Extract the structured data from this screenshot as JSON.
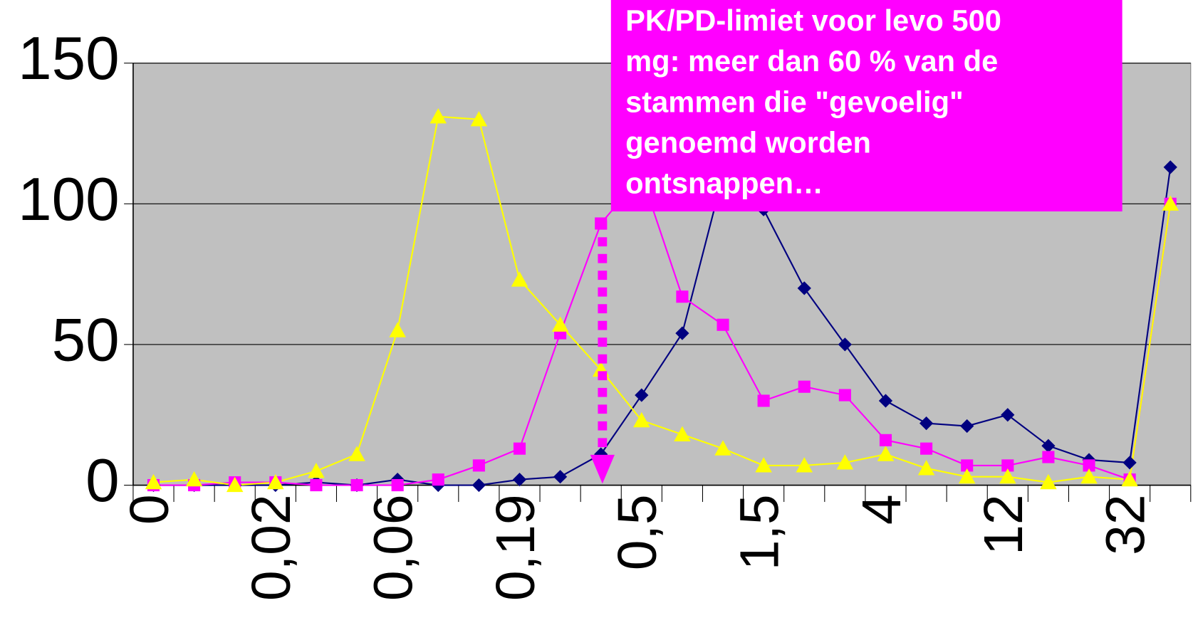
{
  "chart_data": {
    "type": "line",
    "categories": [
      "0",
      null,
      null,
      "0,02",
      null,
      null,
      "0,06",
      null,
      null,
      "0,19",
      null,
      null,
      "0,5",
      null,
      null,
      "1,5",
      null,
      null,
      "4",
      null,
      null,
      "12",
      null,
      null,
      "32",
      null
    ],
    "series": [
      {
        "color": "#000080",
        "marker": "diamond",
        "values": [
          0,
          0,
          0,
          0,
          1,
          0,
          2,
          0,
          0,
          2,
          3,
          11,
          32,
          54,
          110,
          98,
          70,
          50,
          30,
          22,
          21,
          25,
          14,
          9,
          8,
          113
        ]
      },
      {
        "color": "#ff00ff",
        "marker": "square",
        "values": [
          0,
          0,
          1,
          1,
          0,
          0,
          0,
          2,
          7,
          13,
          54,
          93,
          110,
          67,
          57,
          30,
          35,
          32,
          16,
          13,
          7,
          7,
          10,
          7,
          2,
          100
        ]
      },
      {
        "color": "#ffff00",
        "marker": "triangle",
        "values": [
          1,
          2,
          0,
          1,
          5,
          11,
          55,
          131,
          130,
          73,
          57,
          41,
          23,
          18,
          13,
          7,
          7,
          8,
          11,
          6,
          3,
          3,
          1,
          3,
          2,
          100
        ]
      }
    ],
    "ylim": [
      0,
      150
    ],
    "yticks": [
      0,
      50,
      100,
      150
    ],
    "grid": true,
    "plot_background": "#c0c0c0",
    "annotation": {
      "lines": [
        "PK/PD-limiet voor levo 500",
        "mg: meer dan 60 % van de",
        "stammen die \"gevoelig\"",
        "genoemd worden",
        "ontsnappen…"
      ],
      "color": "#ff00ff"
    }
  }
}
